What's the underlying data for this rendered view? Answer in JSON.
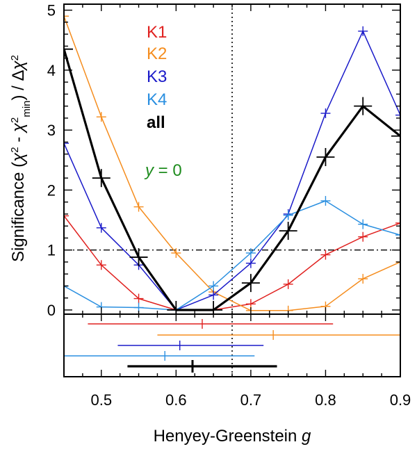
{
  "chart_data": {
    "type": "line",
    "xlabel": "Henyey-Greenstein g",
    "xlabel_prefix": "Henyey-Greenstein ",
    "xlabel_var": "g",
    "ylabel": "Significance (χ² - χ²min) / Δχ²",
    "xlim": [
      0.45,
      0.9
    ],
    "ylim": [
      -0.07,
      5.1
    ],
    "x_ticks": [
      0.5,
      0.6,
      0.7,
      0.8,
      0.9
    ],
    "x_tick_labels": [
      "0.5",
      "0.6",
      "0.7",
      "0.8",
      "0.9"
    ],
    "y_ticks": [
      0,
      1,
      2,
      3,
      4,
      5
    ],
    "y_tick_labels": [
      "0",
      "1",
      "2",
      "3",
      "4",
      "5"
    ],
    "vertical_line_x": 0.675,
    "horizontal_line_y": 1,
    "x": [
      0.45,
      0.5,
      0.55,
      0.6,
      0.65,
      0.7,
      0.75,
      0.8,
      0.85,
      0.9
    ],
    "series": [
      {
        "name": "K1",
        "color": "#e0211f",
        "values": [
          1.57,
          0.75,
          0.19,
          0.0,
          0.0,
          0.1,
          0.43,
          0.92,
          1.22,
          1.45
        ]
      },
      {
        "name": "K2",
        "color": "#f58d1e",
        "values": [
          4.9,
          3.22,
          1.72,
          0.95,
          0.3,
          -0.01,
          -0.01,
          0.06,
          0.52,
          0.8
        ]
      },
      {
        "name": "K3",
        "color": "#1a1ac9",
        "values": [
          2.78,
          1.37,
          0.75,
          0.0,
          0.25,
          0.78,
          1.6,
          3.28,
          4.65,
          3.25
        ]
      },
      {
        "name": "K4",
        "color": "#2a8fe0",
        "values": [
          0.4,
          0.05,
          0.04,
          0.0,
          0.4,
          0.95,
          1.58,
          1.82,
          1.43,
          1.25
        ]
      },
      {
        "name": "all",
        "color": "#000000",
        "values": [
          4.35,
          2.2,
          0.88,
          0.0,
          0.0,
          0.45,
          1.32,
          2.55,
          3.4,
          2.9
        ]
      }
    ],
    "legend": [
      "K1",
      "K2",
      "K3",
      "K4",
      "all"
    ],
    "annotation": "y = 0",
    "annotation_var": "y",
    "annotation_rest": " = 0",
    "annotation_color": "#1e8c1e",
    "lower_panel": {
      "description": "best-fit g with uncertainty ranges",
      "entries": [
        {
          "name": "K1",
          "color": "#e0211f",
          "center": 0.635,
          "low": 0.482,
          "high": 0.81
        },
        {
          "name": "K2",
          "color": "#f58d1e",
          "center": 0.73,
          "low": 0.575,
          "high": 0.9
        },
        {
          "name": "K3",
          "color": "#1a1ac9",
          "center": 0.605,
          "low": 0.522,
          "high": 0.717
        },
        {
          "name": "K4",
          "color": "#2a8fe0",
          "center": 0.585,
          "low": 0.45,
          "high": 0.705
        },
        {
          "name": "all",
          "color": "#000000",
          "center": 0.622,
          "low": 0.535,
          "high": 0.735
        }
      ]
    }
  }
}
